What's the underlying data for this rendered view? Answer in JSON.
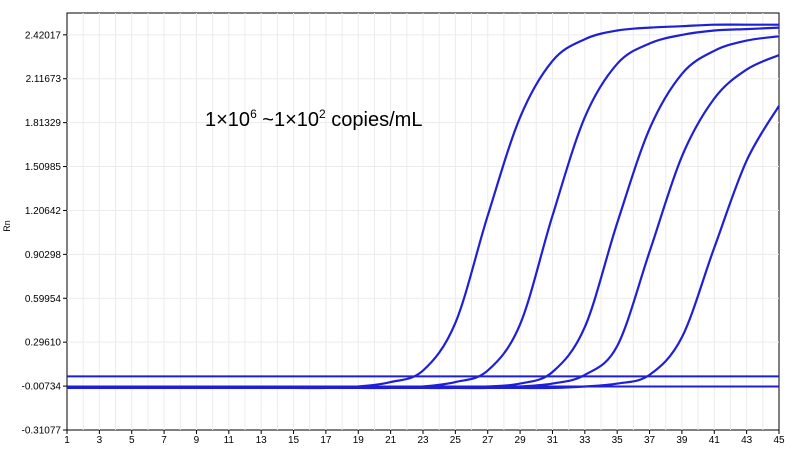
{
  "chart_data": {
    "type": "line",
    "title": "",
    "xlabel": "",
    "ylabel": "Rn",
    "xlim": [
      1,
      45
    ],
    "ylim": [
      -0.31077,
      2.571
    ],
    "grid": true,
    "line_color": "#1f1fd6",
    "x_ticks": [
      1,
      3,
      5,
      7,
      9,
      11,
      13,
      15,
      17,
      19,
      21,
      23,
      25,
      27,
      29,
      31,
      33,
      35,
      37,
      39,
      41,
      43,
      45
    ],
    "x_tick_labels": [
      "1",
      "3",
      "5",
      "7",
      "9",
      "11",
      "13",
      "15",
      "17",
      "19",
      "21",
      "23",
      "25",
      "27",
      "29",
      "31",
      "33",
      "35",
      "37",
      "39",
      "41",
      "43",
      "45"
    ],
    "y_ticks": [
      2.42017,
      2.11673,
      1.81329,
      1.50985,
      1.20642,
      0.90298,
      0.59954,
      0.2961,
      -0.00734,
      -0.31077
    ],
    "y_tick_labels": [
      "2.42017",
      "2.11673",
      "1.81329",
      "1.50985",
      "1.20642",
      "0.90298",
      "0.59954",
      "0.29610",
      "-0.00734",
      "-0.31077"
    ],
    "series": [
      {
        "x": [
          1,
          3,
          5,
          7,
          9,
          11,
          13,
          15,
          17,
          19,
          21,
          23,
          25,
          27,
          29,
          31,
          33,
          35,
          37,
          39,
          41,
          43,
          45
        ],
        "y": [
          -0.02,
          -0.02,
          -0.02,
          -0.02,
          -0.02,
          -0.02,
          -0.02,
          -0.02,
          -0.02,
          -0.01,
          0.02,
          0.1,
          0.43,
          1.17,
          1.85,
          2.24,
          2.39,
          2.45,
          2.47,
          2.48,
          2.49,
          2.49,
          2.49
        ]
      },
      {
        "x": [
          1,
          3,
          5,
          7,
          9,
          11,
          13,
          15,
          17,
          19,
          21,
          23,
          25,
          27,
          29,
          31,
          33,
          35,
          37,
          39,
          41,
          43,
          45
        ],
        "y": [
          -0.02,
          -0.02,
          -0.02,
          -0.02,
          -0.02,
          -0.02,
          -0.02,
          -0.02,
          -0.02,
          -0.02,
          -0.02,
          -0.01,
          0.02,
          0.1,
          0.42,
          1.17,
          1.85,
          2.22,
          2.36,
          2.42,
          2.45,
          2.46,
          2.47
        ]
      },
      {
        "x": [
          1,
          3,
          5,
          7,
          9,
          11,
          13,
          15,
          17,
          19,
          21,
          23,
          25,
          27,
          29,
          31,
          33,
          35,
          37,
          39,
          41,
          43,
          45
        ],
        "y": [
          -0.02,
          -0.02,
          -0.02,
          -0.02,
          -0.02,
          -0.02,
          -0.02,
          -0.02,
          -0.02,
          -0.02,
          -0.02,
          -0.02,
          -0.02,
          -0.01,
          0.01,
          0.09,
          0.4,
          1.12,
          1.77,
          2.15,
          2.31,
          2.38,
          2.41
        ]
      },
      {
        "x": [
          1,
          3,
          5,
          7,
          9,
          11,
          13,
          15,
          17,
          19,
          21,
          23,
          25,
          27,
          29,
          31,
          33,
          35,
          37,
          39,
          41,
          43,
          45
        ],
        "y": [
          -0.02,
          -0.02,
          -0.02,
          -0.02,
          -0.02,
          -0.02,
          -0.02,
          -0.02,
          -0.02,
          -0.02,
          -0.02,
          -0.02,
          -0.02,
          -0.02,
          -0.01,
          0.01,
          0.07,
          0.27,
          0.92,
          1.58,
          1.98,
          2.18,
          2.28
        ]
      },
      {
        "x": [
          1,
          3,
          5,
          7,
          9,
          11,
          13,
          15,
          17,
          19,
          21,
          23,
          25,
          27,
          29,
          31,
          33,
          35,
          37,
          39,
          41,
          43,
          45
        ],
        "y": [
          -0.02,
          -0.02,
          -0.02,
          -0.02,
          -0.02,
          -0.02,
          -0.02,
          -0.02,
          -0.02,
          -0.02,
          -0.02,
          -0.02,
          -0.02,
          -0.02,
          -0.02,
          -0.02,
          -0.01,
          0.01,
          0.07,
          0.33,
          0.95,
          1.55,
          1.93
        ]
      }
    ],
    "threshold_lines": [
      0.06,
      -0.01
    ],
    "annotation": {
      "base1": "1×10",
      "exp1": "6",
      "mid": " ~1×10",
      "exp2": "2",
      "tail": " copies/mL"
    }
  }
}
